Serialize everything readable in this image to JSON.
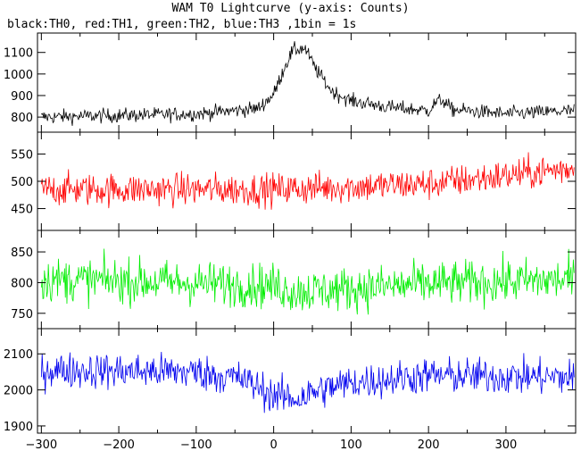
{
  "chart_data": {
    "type": "line",
    "title": "WAM T0 Lightcurve (y-axis: Counts)",
    "subtitle": "black:TH0, red:TH1, green:TH2, blue:TH3 ,1bin = 1s",
    "xlim": [
      -305,
      390
    ],
    "xticks": [
      -300,
      -200,
      -100,
      0,
      100,
      200,
      300
    ],
    "grid": false,
    "panels": [
      {
        "series_name": "TH0",
        "color": "#000000",
        "ylim": [
          730,
          1190
        ],
        "yticks": [
          800,
          900,
          1000,
          1100
        ],
        "baseline": [
          [
            -300,
            800
          ],
          [
            -100,
            815
          ],
          [
            -20,
            840
          ],
          [
            0,
            905
          ],
          [
            15,
            1040
          ],
          [
            25,
            1110
          ],
          [
            40,
            1120
          ],
          [
            55,
            1020
          ],
          [
            75,
            920
          ],
          [
            100,
            875
          ],
          [
            150,
            845
          ],
          [
            200,
            830
          ],
          [
            210,
            870
          ],
          [
            218,
            880
          ],
          [
            230,
            835
          ],
          [
            300,
            815
          ],
          [
            390,
            830
          ]
        ],
        "noise_amplitude": 28
      },
      {
        "series_name": "TH1",
        "color": "#ff0000",
        "ylim": [
          410,
          590
        ],
        "yticks": [
          450,
          500,
          550
        ],
        "baseline": [
          [
            -300,
            485
          ],
          [
            0,
            485
          ],
          [
            100,
            490
          ],
          [
            200,
            495
          ],
          [
            300,
            510
          ],
          [
            390,
            525
          ]
        ],
        "noise_amplitude": 25
      },
      {
        "series_name": "TH2",
        "color": "#00ee00",
        "ylim": [
          725,
          885
        ],
        "yticks": [
          750,
          800,
          850
        ],
        "baseline": [
          [
            -300,
            805
          ],
          [
            -200,
            803
          ],
          [
            0,
            795
          ],
          [
            30,
            785
          ],
          [
            100,
            790
          ],
          [
            200,
            798
          ],
          [
            390,
            805
          ]
        ],
        "noise_amplitude": 30
      },
      {
        "series_name": "TH3",
        "color": "#0000ee",
        "ylim": [
          1880,
          2170
        ],
        "yticks": [
          1900,
          2000,
          2100
        ],
        "baseline": [
          [
            -300,
            2055
          ],
          [
            -100,
            2050
          ],
          [
            -40,
            2030
          ],
          [
            0,
            1985
          ],
          [
            30,
            1975
          ],
          [
            60,
            2000
          ],
          [
            100,
            2020
          ],
          [
            200,
            2040
          ],
          [
            390,
            2035
          ]
        ],
        "noise_amplitude": 42
      }
    ]
  }
}
